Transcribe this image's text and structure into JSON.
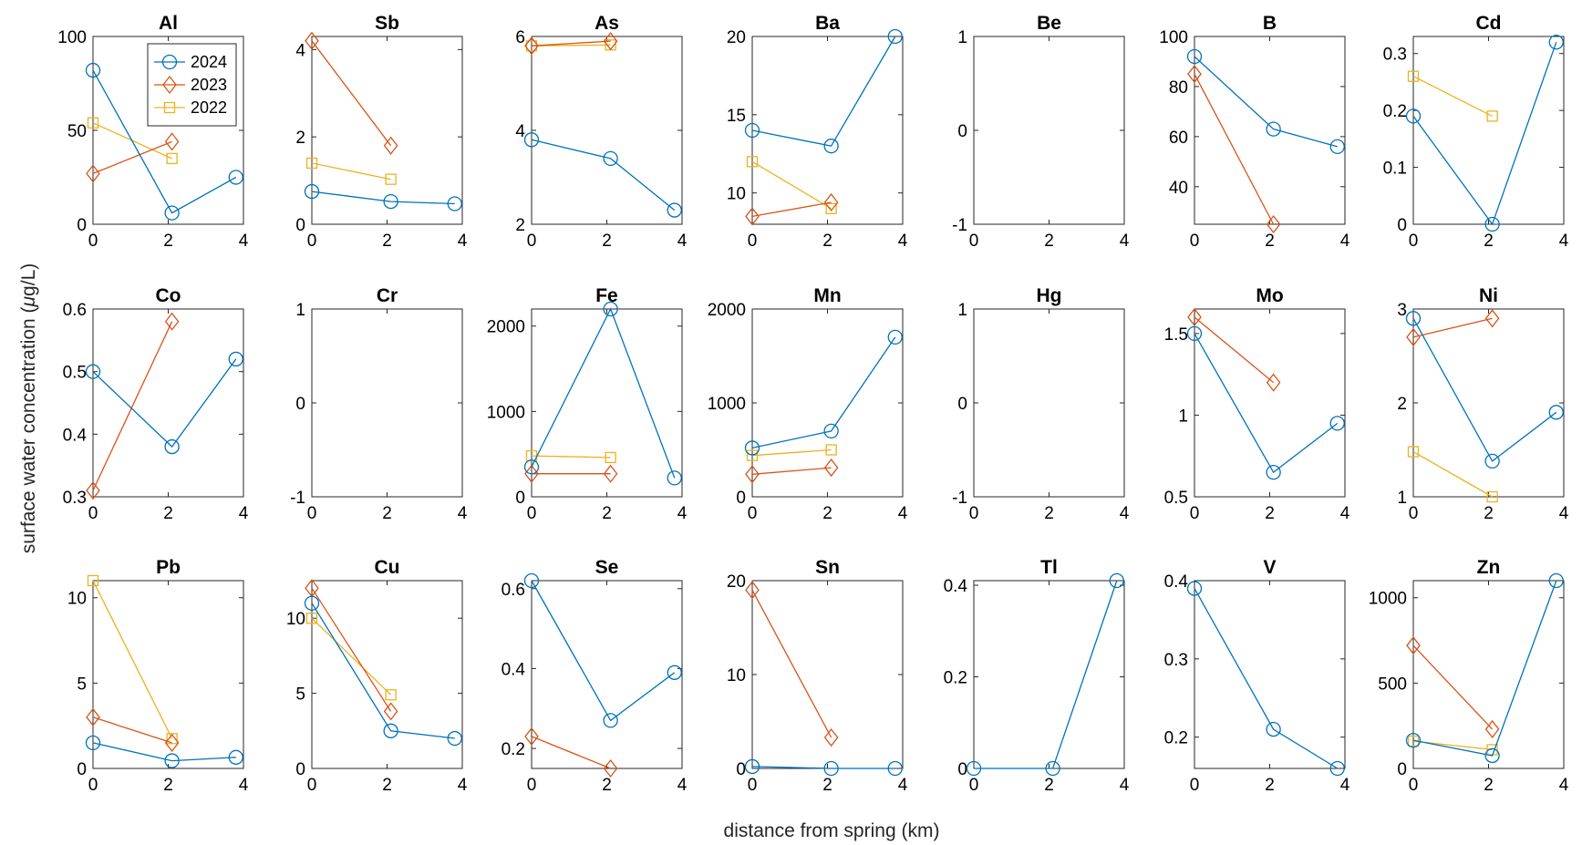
{
  "figure": {
    "xlabel": "distance from spring (km)",
    "ylabel_prefix": "surface water concentration (",
    "ylabel_mu": "μ",
    "ylabel_suffix": "g/L)"
  },
  "legend": [
    {
      "name": "2024",
      "color": "#0072BD",
      "marker": "circle"
    },
    {
      "name": "2023",
      "color": "#D95319",
      "marker": "diamond"
    },
    {
      "name": "2022",
      "color": "#EDB120",
      "marker": "square"
    }
  ],
  "chart_data": [
    {
      "type": "line",
      "title": "Al",
      "xlim": [
        0,
        4
      ],
      "ylim": [
        0,
        100
      ],
      "xticks": [
        "0",
        "2",
        "4"
      ],
      "yticks": [
        "0",
        "50",
        "100"
      ],
      "series": [
        {
          "name": "2024",
          "x": [
            0,
            2.1,
            3.8
          ],
          "y": [
            82,
            6,
            25
          ]
        },
        {
          "name": "2023",
          "x": [
            0,
            2.1
          ],
          "y": [
            27,
            44
          ]
        },
        {
          "name": "2022",
          "x": [
            0,
            2.1
          ],
          "y": [
            54,
            35
          ]
        }
      ]
    },
    {
      "type": "line",
      "title": "Sb",
      "xlim": [
        0,
        4
      ],
      "ylim": [
        0,
        4.3
      ],
      "xticks": [
        "0",
        "2",
        "4"
      ],
      "yticks": [
        "0",
        "2",
        "4"
      ],
      "series": [
        {
          "name": "2024",
          "x": [
            0,
            2.1,
            3.8
          ],
          "y": [
            0.75,
            0.52,
            0.47
          ]
        },
        {
          "name": "2023",
          "x": [
            0,
            2.1
          ],
          "y": [
            4.2,
            1.8
          ]
        },
        {
          "name": "2022",
          "x": [
            0,
            2.1
          ],
          "y": [
            1.4,
            1.03
          ]
        }
      ]
    },
    {
      "type": "line",
      "title": "As",
      "xlim": [
        0,
        4
      ],
      "ylim": [
        2,
        6
      ],
      "xticks": [
        "0",
        "2",
        "4"
      ],
      "yticks": [
        "2",
        "4",
        "6"
      ],
      "series": [
        {
          "name": "2024",
          "x": [
            0,
            2.1,
            3.8
          ],
          "y": [
            3.8,
            3.4,
            2.3
          ]
        },
        {
          "name": "2023",
          "x": [
            0,
            2.1
          ],
          "y": [
            5.8,
            5.9
          ]
        },
        {
          "name": "2022",
          "x": [
            0,
            2.1
          ],
          "y": [
            5.8,
            5.82
          ]
        }
      ]
    },
    {
      "type": "line",
      "title": "Ba",
      "xlim": [
        0,
        4
      ],
      "ylim": [
        8,
        20
      ],
      "xticks": [
        "0",
        "2",
        "4"
      ],
      "yticks": [
        "10",
        "15",
        "20"
      ],
      "series": [
        {
          "name": "2024",
          "x": [
            0,
            2.1,
            3.8
          ],
          "y": [
            14,
            13,
            20
          ]
        },
        {
          "name": "2023",
          "x": [
            0,
            2.1
          ],
          "y": [
            8.5,
            9.4
          ]
        },
        {
          "name": "2022",
          "x": [
            0,
            2.1
          ],
          "y": [
            12,
            9
          ]
        }
      ]
    },
    {
      "type": "line",
      "title": "Be",
      "xlim": [
        0,
        4
      ],
      "ylim": [
        -1,
        1
      ],
      "xticks": [
        "0",
        "2",
        "4"
      ],
      "yticks": [
        "-1",
        "0",
        "1"
      ],
      "series": []
    },
    {
      "type": "line",
      "title": "B",
      "xlim": [
        0,
        4
      ],
      "ylim": [
        25,
        100
      ],
      "xticks": [
        "0",
        "2",
        "4"
      ],
      "yticks": [
        "40",
        "60",
        "80",
        "100"
      ],
      "series": [
        {
          "name": "2024",
          "x": [
            0,
            2.1,
            3.8
          ],
          "y": [
            92,
            63,
            56
          ]
        },
        {
          "name": "2023",
          "x": [
            0,
            2.1
          ],
          "y": [
            85,
            25
          ]
        }
      ]
    },
    {
      "type": "line",
      "title": "Cd",
      "xlim": [
        0,
        4
      ],
      "ylim": [
        0,
        0.33
      ],
      "xticks": [
        "0",
        "2",
        "4"
      ],
      "yticks": [
        "0",
        "0.1",
        "0.2",
        "0.3"
      ],
      "series": [
        {
          "name": "2024",
          "x": [
            0,
            2.1,
            3.8
          ],
          "y": [
            0.19,
            0,
            0.32
          ]
        },
        {
          "name": "2022",
          "x": [
            0,
            2.1
          ],
          "y": [
            0.26,
            0.19
          ]
        }
      ]
    },
    {
      "type": "line",
      "title": "Co",
      "xlim": [
        0,
        4
      ],
      "ylim": [
        0.3,
        0.6
      ],
      "xticks": [
        "0",
        "2",
        "4"
      ],
      "yticks": [
        "0.3",
        "0.4",
        "0.5",
        "0.6"
      ],
      "series": [
        {
          "name": "2024",
          "x": [
            0,
            2.1,
            3.8
          ],
          "y": [
            0.5,
            0.38,
            0.52
          ]
        },
        {
          "name": "2023",
          "x": [
            0,
            2.1
          ],
          "y": [
            0.31,
            0.58
          ]
        }
      ]
    },
    {
      "type": "line",
      "title": "Cr",
      "xlim": [
        0,
        4
      ],
      "ylim": [
        -1,
        1
      ],
      "xticks": [
        "0",
        "2",
        "4"
      ],
      "yticks": [
        "-1",
        "0",
        "1"
      ],
      "series": []
    },
    {
      "type": "line",
      "title": "Fe",
      "xlim": [
        0,
        4
      ],
      "ylim": [
        0,
        2200
      ],
      "xticks": [
        "0",
        "2",
        "4"
      ],
      "yticks": [
        "0",
        "1000",
        "2000"
      ],
      "series": [
        {
          "name": "2024",
          "x": [
            0,
            2.1,
            3.8
          ],
          "y": [
            350,
            2200,
            220
          ]
        },
        {
          "name": "2023",
          "x": [
            0,
            2.1
          ],
          "y": [
            270,
            270
          ]
        },
        {
          "name": "2022",
          "x": [
            0,
            2.1
          ],
          "y": [
            480,
            460
          ]
        }
      ]
    },
    {
      "type": "line",
      "title": "Mn",
      "xlim": [
        0,
        4
      ],
      "ylim": [
        0,
        2000
      ],
      "xticks": [
        "0",
        "2",
        "4"
      ],
      "yticks": [
        "0",
        "1000",
        "2000"
      ],
      "series": [
        {
          "name": "2024",
          "x": [
            0,
            2.1,
            3.8
          ],
          "y": [
            520,
            700,
            1700
          ]
        },
        {
          "name": "2023",
          "x": [
            0,
            2.1
          ],
          "y": [
            240,
            310
          ]
        },
        {
          "name": "2022",
          "x": [
            0,
            2.1
          ],
          "y": [
            440,
            500
          ]
        }
      ]
    },
    {
      "type": "line",
      "title": "Hg",
      "xlim": [
        0,
        4
      ],
      "ylim": [
        -1,
        1
      ],
      "xticks": [
        "0",
        "2",
        "4"
      ],
      "yticks": [
        "-1",
        "0",
        "1"
      ],
      "series": []
    },
    {
      "type": "line",
      "title": "Mo",
      "xlim": [
        0,
        4
      ],
      "ylim": [
        0.5,
        1.65
      ],
      "xticks": [
        "0",
        "2",
        "4"
      ],
      "yticks": [
        "0.5",
        "1",
        "1.5"
      ],
      "series": [
        {
          "name": "2024",
          "x": [
            0,
            2.1,
            3.8
          ],
          "y": [
            1.5,
            0.65,
            0.95
          ]
        },
        {
          "name": "2023",
          "x": [
            0,
            2.1
          ],
          "y": [
            1.6,
            1.2
          ]
        }
      ]
    },
    {
      "type": "line",
      "title": "Ni",
      "xlim": [
        0,
        4
      ],
      "ylim": [
        1,
        3
      ],
      "xticks": [
        "0",
        "2",
        "4"
      ],
      "yticks": [
        "1",
        "2",
        "3"
      ],
      "series": [
        {
          "name": "2024",
          "x": [
            0,
            2.1,
            3.8
          ],
          "y": [
            2.9,
            1.38,
            1.9
          ]
        },
        {
          "name": "2023",
          "x": [
            0,
            2.1
          ],
          "y": [
            2.7,
            2.9
          ]
        },
        {
          "name": "2022",
          "x": [
            0,
            2.1
          ],
          "y": [
            1.48,
            1
          ]
        }
      ]
    },
    {
      "type": "line",
      "title": "Pb",
      "xlim": [
        0,
        4
      ],
      "ylim": [
        0,
        11
      ],
      "xticks": [
        "0",
        "2",
        "4"
      ],
      "yticks": [
        "0",
        "5",
        "10"
      ],
      "series": [
        {
          "name": "2024",
          "x": [
            0,
            2.1,
            3.8
          ],
          "y": [
            1.5,
            0.45,
            0.65
          ]
        },
        {
          "name": "2023",
          "x": [
            0,
            2.1
          ],
          "y": [
            3,
            1.5
          ]
        },
        {
          "name": "2022",
          "x": [
            0,
            2.1
          ],
          "y": [
            11,
            1.75
          ]
        }
      ]
    },
    {
      "type": "line",
      "title": "Cu",
      "xlim": [
        0,
        4
      ],
      "ylim": [
        0,
        12.5
      ],
      "xticks": [
        "0",
        "2",
        "4"
      ],
      "yticks": [
        "0",
        "5",
        "10"
      ],
      "series": [
        {
          "name": "2024",
          "x": [
            0,
            2.1,
            3.8
          ],
          "y": [
            11,
            2.5,
            2
          ]
        },
        {
          "name": "2023",
          "x": [
            0,
            2.1
          ],
          "y": [
            12,
            3.8
          ]
        },
        {
          "name": "2022",
          "x": [
            0,
            2.1
          ],
          "y": [
            10,
            4.9
          ]
        }
      ]
    },
    {
      "type": "line",
      "title": "Se",
      "xlim": [
        0,
        4
      ],
      "ylim": [
        0.15,
        0.62
      ],
      "xticks": [
        "0",
        "2",
        "4"
      ],
      "yticks": [
        "0.2",
        "0.4",
        "0.6"
      ],
      "series": [
        {
          "name": "2024",
          "x": [
            0,
            2.1,
            3.8
          ],
          "y": [
            0.62,
            0.27,
            0.39
          ]
        },
        {
          "name": "2023",
          "x": [
            0,
            2.1
          ],
          "y": [
            0.23,
            0.15
          ]
        }
      ]
    },
    {
      "type": "line",
      "title": "Sn",
      "xlim": [
        0,
        4
      ],
      "ylim": [
        0,
        20
      ],
      "xticks": [
        "0",
        "2",
        "4"
      ],
      "yticks": [
        "0",
        "10",
        "20"
      ],
      "series": [
        {
          "name": "2024",
          "x": [
            0,
            2.1,
            3.8
          ],
          "y": [
            0.2,
            0,
            0
          ]
        },
        {
          "name": "2023",
          "x": [
            0,
            2.1
          ],
          "y": [
            19,
            3.3
          ]
        }
      ]
    },
    {
      "type": "line",
      "title": "Tl",
      "xlim": [
        0,
        4
      ],
      "ylim": [
        0,
        0.41
      ],
      "xticks": [
        "0",
        "2",
        "4"
      ],
      "yticks": [
        "0",
        "0.2",
        "0.4"
      ],
      "series": [
        {
          "name": "2024",
          "x": [
            0,
            2.1,
            3.8
          ],
          "y": [
            0,
            0,
            0.41
          ]
        }
      ]
    },
    {
      "type": "line",
      "title": "V",
      "xlim": [
        0,
        4
      ],
      "ylim": [
        0.16,
        0.4
      ],
      "xticks": [
        "0",
        "2",
        "4"
      ],
      "yticks": [
        "0.2",
        "0.3",
        "0.4"
      ],
      "series": [
        {
          "name": "2024",
          "x": [
            0,
            2.1,
            3.8
          ],
          "y": [
            0.39,
            0.21,
            0.16
          ]
        }
      ]
    },
    {
      "type": "line",
      "title": "Zn",
      "xlim": [
        0,
        4
      ],
      "ylim": [
        0,
        1100
      ],
      "xticks": [
        "0",
        "2",
        "4"
      ],
      "yticks": [
        "0",
        "500",
        "1000"
      ],
      "series": [
        {
          "name": "2024",
          "x": [
            0,
            2.1,
            3.8
          ],
          "y": [
            165,
            75,
            1100
          ]
        },
        {
          "name": "2023",
          "x": [
            0,
            2.1
          ],
          "y": [
            720,
            230
          ]
        },
        {
          "name": "2022",
          "x": [
            0,
            2.1
          ],
          "y": [
            160,
            110
          ]
        }
      ]
    }
  ]
}
